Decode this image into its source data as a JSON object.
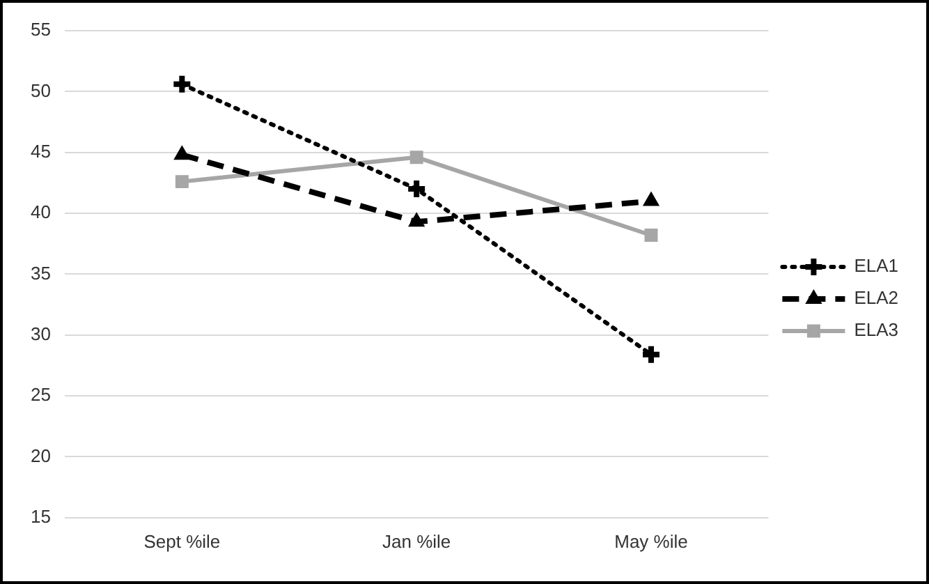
{
  "chart_data": {
    "type": "line",
    "categories": [
      "Sept %ile",
      "Jan %ile",
      "May %ile"
    ],
    "series": [
      {
        "name": "ELA1",
        "color": "#000000",
        "values": [
          50.6,
          42.0,
          28.4
        ],
        "line_style": "dotted",
        "marker": "cross"
      },
      {
        "name": "ELA2",
        "color": "#000000",
        "values": [
          44.8,
          39.3,
          41.0
        ],
        "line_style": "dashed",
        "marker": "triangle"
      },
      {
        "name": "ELA3",
        "color": "#a6a6a6",
        "values": [
          42.6,
          44.6,
          38.2
        ],
        "line_style": "solid",
        "marker": "square"
      }
    ],
    "ylim": [
      15,
      55
    ],
    "yticks": [
      15,
      20,
      25,
      30,
      35,
      40,
      45,
      50,
      55
    ],
    "grid": "y",
    "legend": "right"
  }
}
